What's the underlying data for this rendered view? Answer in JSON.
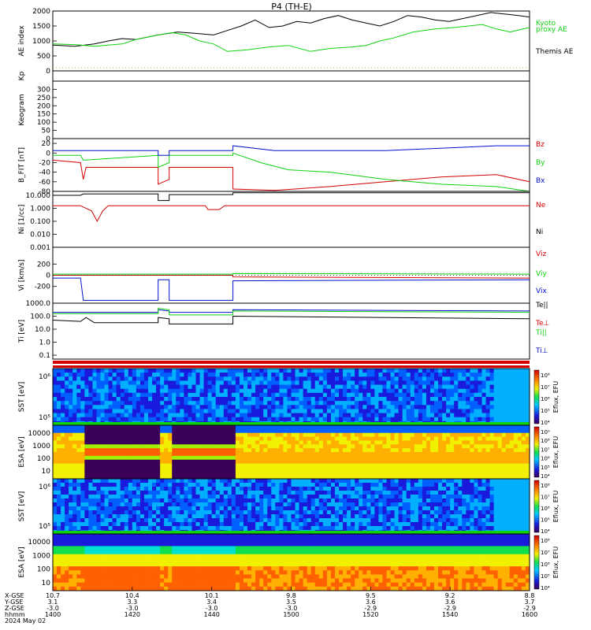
{
  "title": "P4 (TH-E)",
  "colors": {
    "black": "#000000",
    "red": "#d40000",
    "green": "#10d010",
    "blue": "#0010c8",
    "orange": "#f0a000",
    "dotted": "#b08000"
  },
  "chart_data": [
    {
      "id": "ae",
      "type": "line",
      "ylabel": "AE index",
      "ylim": [
        0,
        2000
      ],
      "ticks": [
        "2000",
        "1500",
        "1000",
        "500",
        "0"
      ],
      "tick_values": [
        2000,
        1500,
        1000,
        500,
        0
      ],
      "legend": [
        "Kyoto",
        "proxy AE",
        "Themis AE"
      ],
      "series": [
        {
          "name": "Themis AE",
          "color": "black",
          "values": [
            [
              0,
              860
            ],
            [
              8,
              820
            ],
            [
              15,
              900
            ],
            [
              20,
              1000
            ],
            [
              25,
              1080
            ],
            [
              30,
              1050
            ],
            [
              38,
              1200
            ],
            [
              45,
              1300
            ],
            [
              52,
              1250
            ],
            [
              58,
              1200
            ],
            [
              63,
              1350
            ],
            [
              68,
              1500
            ],
            [
              73,
              1700
            ],
            [
              78,
              1450
            ],
            [
              83,
              1500
            ],
            [
              88,
              1650
            ],
            [
              93,
              1600
            ],
            [
              98,
              1750
            ],
            [
              103,
              1850
            ],
            [
              108,
              1700
            ],
            [
              113,
              1600
            ],
            [
              118,
              1500
            ],
            [
              123,
              1650
            ],
            [
              128,
              1850
            ],
            [
              133,
              1800
            ],
            [
              138,
              1700
            ],
            [
              143,
              1650
            ],
            [
              148,
              1750
            ],
            [
              153,
              1850
            ],
            [
              158,
              1950
            ],
            [
              163,
              1900
            ],
            [
              168,
              1850
            ],
            [
              172,
              1800
            ]
          ]
        },
        {
          "name": "Kyoto proxy AE",
          "color": "green",
          "values": [
            [
              0,
              900
            ],
            [
              8,
              880
            ],
            [
              15,
              820
            ],
            [
              20,
              860
            ],
            [
              25,
              900
            ],
            [
              30,
              1050
            ],
            [
              38,
              1200
            ],
            [
              43,
              1280
            ],
            [
              48,
              1200
            ],
            [
              53,
              1000
            ],
            [
              58,
              900
            ],
            [
              63,
              650
            ],
            [
              70,
              700
            ],
            [
              78,
              800
            ],
            [
              85,
              850
            ],
            [
              93,
              650
            ],
            [
              100,
              750
            ],
            [
              108,
              800
            ],
            [
              113,
              850
            ],
            [
              118,
              1000
            ],
            [
              123,
              1100
            ],
            [
              130,
              1300
            ],
            [
              138,
              1400
            ],
            [
              145,
              1450
            ],
            [
              150,
              1500
            ],
            [
              155,
              1550
            ],
            [
              160,
              1400
            ],
            [
              165,
              1300
            ],
            [
              172,
              1450
            ]
          ]
        }
      ]
    },
    {
      "id": "kp",
      "type": "line",
      "ylabel": "Kp",
      "ylim": [
        0,
        9
      ],
      "ticks": [],
      "tick_values": []
    },
    {
      "id": "keo",
      "type": "heatmap",
      "ylabel": "Keogram",
      "ylim": [
        0,
        350
      ],
      "ticks": [
        "300",
        "250",
        "200",
        "150",
        "100",
        "50",
        "0"
      ],
      "tick_values": [
        300,
        250,
        200,
        150,
        100,
        50,
        0
      ]
    },
    {
      "id": "bfield",
      "type": "line",
      "ylabel": "B_FIT [nT]",
      "ylim": [
        -80,
        30
      ],
      "ticks": [
        "20",
        "0",
        "-20",
        "-40",
        "-60",
        "-80"
      ],
      "tick_values": [
        20,
        0,
        -20,
        -40,
        -60,
        -80
      ],
      "legend": [
        "Bz",
        "By",
        "Bx"
      ],
      "series": [
        {
          "name": "Bz",
          "color": "red",
          "values": [
            [
              0,
              -15
            ],
            [
              10,
              -20
            ],
            [
              11,
              -55
            ],
            [
              12,
              -30
            ],
            [
              38,
              -30
            ],
            [
              38,
              -65
            ],
            [
              42,
              -55
            ],
            [
              42,
              -30
            ],
            [
              65,
              -30
            ],
            [
              65,
              -75
            ],
            [
              80,
              -78
            ],
            [
              100,
              -70
            ],
            [
              120,
              -60
            ],
            [
              140,
              -50
            ],
            [
              160,
              -45
            ],
            [
              172,
              -60
            ]
          ]
        },
        {
          "name": "By",
          "color": "green",
          "values": [
            [
              0,
              -5
            ],
            [
              10,
              -5
            ],
            [
              11,
              -15
            ],
            [
              38,
              -5
            ],
            [
              38,
              -30
            ],
            [
              42,
              -20
            ],
            [
              42,
              -5
            ],
            [
              65,
              -5
            ],
            [
              65,
              0
            ],
            [
              75,
              -20
            ],
            [
              85,
              -35
            ],
            [
              100,
              -40
            ],
            [
              120,
              -55
            ],
            [
              140,
              -65
            ],
            [
              160,
              -70
            ],
            [
              172,
              -80
            ]
          ]
        },
        {
          "name": "Bx",
          "color": "blue",
          "values": [
            [
              0,
              5
            ],
            [
              38,
              5
            ],
            [
              38,
              -5
            ],
            [
              42,
              -5
            ],
            [
              42,
              5
            ],
            [
              65,
              5
            ],
            [
              65,
              15
            ],
            [
              80,
              5
            ],
            [
              100,
              5
            ],
            [
              120,
              5
            ],
            [
              140,
              10
            ],
            [
              160,
              15
            ],
            [
              172,
              15
            ]
          ]
        }
      ]
    },
    {
      "id": "density",
      "type": "line",
      "ylabel": "Ni [1/cc]",
      "ylim": [
        -3,
        1.3
      ],
      "ticks": [
        "10.000",
        "1.000",
        "0.100",
        "0.010",
        "0.001"
      ],
      "tick_values": [
        1,
        0,
        -1,
        -2,
        -3
      ],
      "legend": [
        "Ne",
        "Ni"
      ],
      "series": [
        {
          "name": "Ne",
          "color": "red",
          "values": [
            [
              0,
              0.2
            ],
            [
              10,
              0.2
            ],
            [
              14,
              -0.2
            ],
            [
              16,
              -1.0
            ],
            [
              18,
              -0.2
            ],
            [
              20,
              0.2
            ],
            [
              55,
              0.2
            ],
            [
              56,
              -0.1
            ],
            [
              60,
              -0.1
            ],
            [
              62,
              0.2
            ],
            [
              172,
              0.2
            ]
          ]
        },
        {
          "name": "Ni",
          "color": "black",
          "values": [
            [
              0,
              1.0
            ],
            [
              10,
              1.0
            ],
            [
              11,
              1.1
            ],
            [
              38,
              1.1
            ],
            [
              38,
              0.6
            ],
            [
              42,
              0.6
            ],
            [
              42,
              1.05
            ],
            [
              65,
              1.05
            ],
            [
              65,
              1.2
            ],
            [
              172,
              1.2
            ]
          ]
        }
      ]
    },
    {
      "id": "velocity",
      "type": "line",
      "ylabel": "Vi [km/s]",
      "ylim": [
        -500,
        500
      ],
      "ticks": [
        "200",
        "0",
        "-200"
      ],
      "tick_values": [
        200,
        0,
        -200
      ],
      "legend": [
        "Viz",
        "Viy",
        "Vix"
      ],
      "series": [
        {
          "name": "Viz",
          "color": "red",
          "values": [
            [
              0,
              0
            ],
            [
              65,
              0
            ],
            [
              65,
              -30
            ],
            [
              172,
              -50
            ]
          ]
        },
        {
          "name": "Viy",
          "color": "green",
          "values": [
            [
              0,
              20
            ],
            [
              65,
              20
            ],
            [
              65,
              30
            ],
            [
              172,
              20
            ]
          ]
        },
        {
          "name": "Vix",
          "color": "blue",
          "values": [
            [
              0,
              -50
            ],
            [
              10,
              -50
            ],
            [
              11,
              -450
            ],
            [
              38,
              -450
            ],
            [
              38,
              -80
            ],
            [
              42,
              -80
            ],
            [
              42,
              -450
            ],
            [
              65,
              -450
            ],
            [
              65,
              -100
            ],
            [
              172,
              -80
            ]
          ]
        }
      ]
    },
    {
      "id": "temp",
      "type": "line",
      "ylabel": "Ti [eV]",
      "ylim": [
        -1.3,
        3
      ],
      "ticks": [
        "1000.0",
        "100.0",
        "10.0",
        "1.0",
        "0.1"
      ],
      "tick_values": [
        3,
        2,
        1,
        0,
        -1
      ],
      "legend": [
        "Te||",
        "Te⊥",
        "Ti||",
        "Ti⊥"
      ],
      "series": [
        {
          "name": "Ti⊥",
          "color": "blue",
          "values": [
            [
              0,
              2.3
            ],
            [
              38,
              2.3
            ],
            [
              38,
              2.5
            ],
            [
              42,
              2.4
            ],
            [
              42,
              2.3
            ],
            [
              65,
              2.3
            ],
            [
              65,
              2.5
            ],
            [
              172,
              2.4
            ]
          ]
        },
        {
          "name": "Ti||",
          "color": "green",
          "values": [
            [
              0,
              2.2
            ],
            [
              38,
              2.2
            ],
            [
              38,
              2.6
            ],
            [
              42,
              2.5
            ],
            [
              42,
              2.1
            ],
            [
              65,
              2.1
            ],
            [
              65,
              2.4
            ],
            [
              172,
              2.3
            ]
          ]
        },
        {
          "name": "Te||",
          "color": "black",
          "values": [
            [
              0,
              1.7
            ],
            [
              10,
              1.6
            ],
            [
              12,
              1.9
            ],
            [
              15,
              1.5
            ],
            [
              38,
              1.5
            ],
            [
              38,
              1.9
            ],
            [
              42,
              1.8
            ],
            [
              42,
              1.4
            ],
            [
              65,
              1.4
            ],
            [
              65,
              2.0
            ],
            [
              172,
              1.8
            ]
          ]
        }
      ]
    },
    {
      "id": "sst_e",
      "type": "heatmap",
      "ylabel": "SST [eV]",
      "ticks": [
        "10⁶",
        "10⁵"
      ],
      "colorbar_label": "Eflux, EFU",
      "colorbar_ticks": [
        "10⁸",
        "10⁷",
        "10⁶",
        "10⁵",
        "10⁴"
      ]
    },
    {
      "id": "esa_e",
      "type": "heatmap",
      "ylabel": "ESA [eV]",
      "ticks": [
        "10000",
        "1000",
        "100",
        "10"
      ],
      "colorbar_label": "Eflux, EFU",
      "colorbar_ticks": [
        "10⁹",
        "10⁸",
        "10⁷",
        "10⁶",
        "10⁵",
        "10⁴"
      ]
    },
    {
      "id": "sst_i",
      "type": "heatmap",
      "ylabel": "SST [eV]",
      "ticks": [
        "10⁶",
        "10⁵"
      ],
      "colorbar_label": "Eflux, EFU",
      "colorbar_ticks": [
        "10⁸",
        "10⁷",
        "10⁶",
        "10⁵",
        "10⁴"
      ]
    },
    {
      "id": "esa_i",
      "type": "heatmap",
      "ylabel": "ESA [eV]",
      "ticks": [
        "10000",
        "1000",
        "100",
        "10"
      ],
      "colorbar_label": "Eflux, EFU",
      "colorbar_ticks": [
        "10⁸",
        "10⁷",
        "10⁶",
        "10⁵",
        "10⁴"
      ]
    }
  ],
  "x_axis": {
    "row_labels": [
      "X-GSE",
      "Y-GSE",
      "Z-GSE",
      "hhmm",
      "2024 May 02"
    ],
    "ticks": [
      {
        "x": 0,
        "X": "10.7",
        "Y": "3.1",
        "Z": "-3.0",
        "t": "1400"
      },
      {
        "x": 20,
        "X": "10.4",
        "Y": "3.3",
        "Z": "-3.0",
        "t": "1420"
      },
      {
        "x": 40,
        "X": "10.1",
        "Y": "3.4",
        "Z": "-3.0",
        "t": "1440"
      },
      {
        "x": 60,
        "X": "9.8",
        "Y": "3.5",
        "Z": "-3.0",
        "t": "1500"
      },
      {
        "x": 80,
        "X": "9.5",
        "Y": "3.6",
        "Z": "-2.9",
        "t": "1520"
      },
      {
        "x": 100,
        "X": "9.2",
        "Y": "3.6",
        "Z": "-2.9",
        "t": "1540"
      },
      {
        "x": 120,
        "X": "8.8",
        "Y": "3.7",
        "Z": "-2.9",
        "t": "1600"
      }
    ]
  }
}
